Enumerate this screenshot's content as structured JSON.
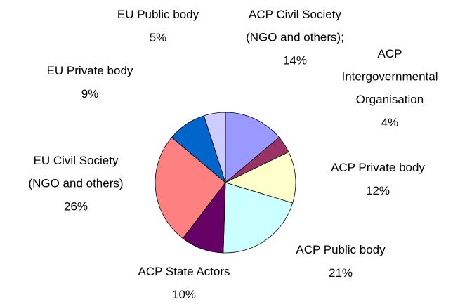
{
  "chart_data": {
    "type": "pie",
    "categories": [
      "ACP Civil Society\n(NGO and others);",
      "ACP\nIntergovernmental\nOrganisation",
      "ACP Private body",
      "ACP Public body",
      "ACP State Actors",
      "EU Civil Society\n(NGO and others)",
      "EU Private body",
      "EU Public body"
    ],
    "values": [
      14,
      4,
      12,
      21,
      10,
      26,
      9,
      5
    ],
    "value_labels": [
      "14%",
      "4%",
      "12%",
      "21%",
      "10%",
      "26%",
      "9%",
      "5%"
    ],
    "colors": [
      "#9999ff",
      "#993366",
      "#ffffcc",
      "#ccffff",
      "#660066",
      "#ff8080",
      "#0066cc",
      "#ccccff"
    ]
  }
}
